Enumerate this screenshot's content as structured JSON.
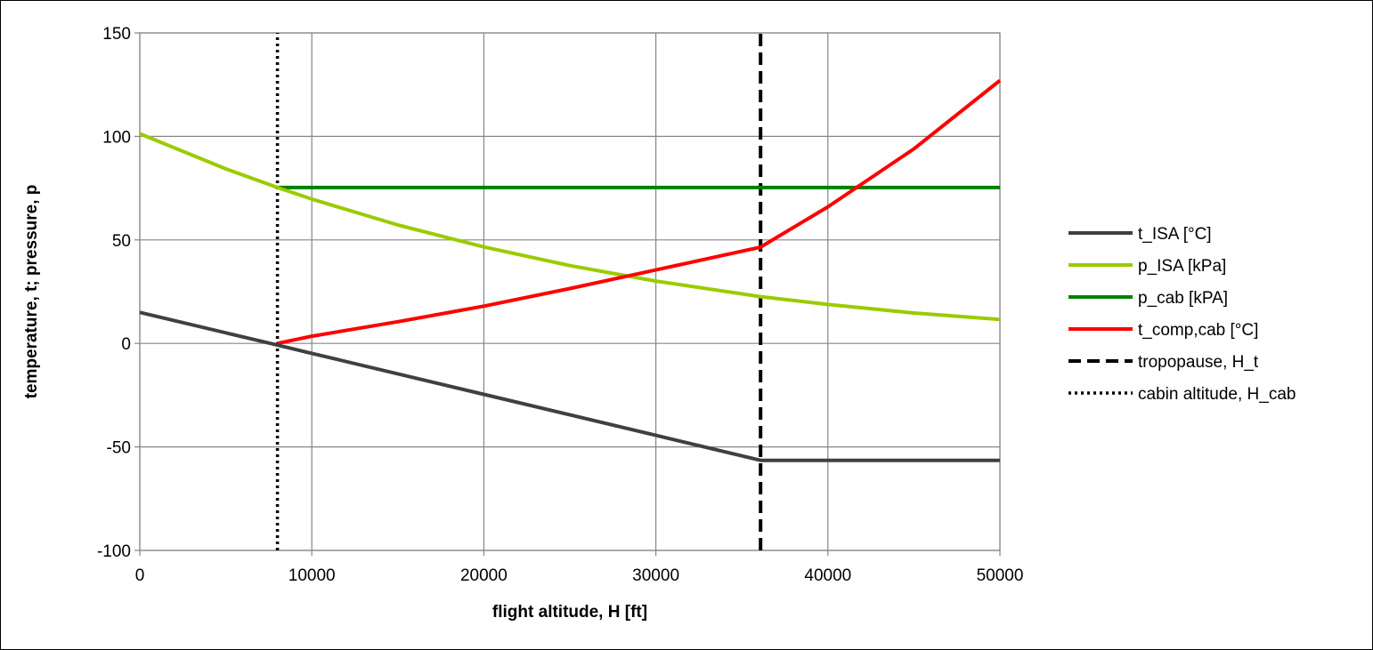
{
  "chart_data": {
    "type": "line",
    "title": "",
    "xlabel": "flight altitude, H [ft]",
    "ylabel": "temperature, t;  pressure, p",
    "xlim": [
      0,
      50000
    ],
    "ylim": [
      -100,
      150
    ],
    "x_ticks": [
      "0",
      "10000",
      "20000",
      "30000",
      "40000",
      "50000"
    ],
    "y_ticks": [
      "-100",
      "-50",
      "0",
      "50",
      "100",
      "150"
    ],
    "grid": true,
    "legend_position": "right",
    "series": [
      {
        "name": "t_ISA [°C]",
        "color": "#404040",
        "style": "solid",
        "x": [
          0,
          8000,
          10000,
          20000,
          30000,
          36089,
          40000,
          50000
        ],
        "y": [
          15,
          -0.8,
          -4.8,
          -24.6,
          -44.4,
          -56.5,
          -56.5,
          -56.5
        ]
      },
      {
        "name": "p_ISA [kPa]",
        "color": "#99cc00",
        "style": "solid",
        "x": [
          0,
          5000,
          8000,
          10000,
          15000,
          20000,
          25000,
          30000,
          36089,
          40000,
          45000,
          50000
        ],
        "y": [
          101.3,
          84.3,
          75.3,
          69.7,
          57.2,
          46.6,
          37.6,
          30.1,
          22.6,
          18.8,
          14.7,
          11.6
        ]
      },
      {
        "name": "p_cab [kPA]",
        "color": "#008000",
        "style": "solid",
        "x": [
          8000,
          50000
        ],
        "y": [
          75.3,
          75.3
        ]
      },
      {
        "name": "t_comp,cab [°C]",
        "color": "#ff0000",
        "style": "solid",
        "x": [
          8000,
          10000,
          15000,
          20000,
          25000,
          30000,
          36089,
          40000,
          45000,
          50000
        ],
        "y": [
          0,
          3.5,
          10.5,
          18,
          26.5,
          35.5,
          46.5,
          66,
          94,
          127
        ]
      },
      {
        "name": "tropopause, H_t",
        "color": "#000000",
        "style": "dashed",
        "x": [
          36089,
          36089
        ],
        "y": [
          -100,
          150
        ]
      },
      {
        "name": "cabin altitude, H_cab",
        "color": "#000000",
        "style": "dotted",
        "x": [
          8000,
          8000
        ],
        "y": [
          -100,
          150
        ]
      }
    ]
  }
}
